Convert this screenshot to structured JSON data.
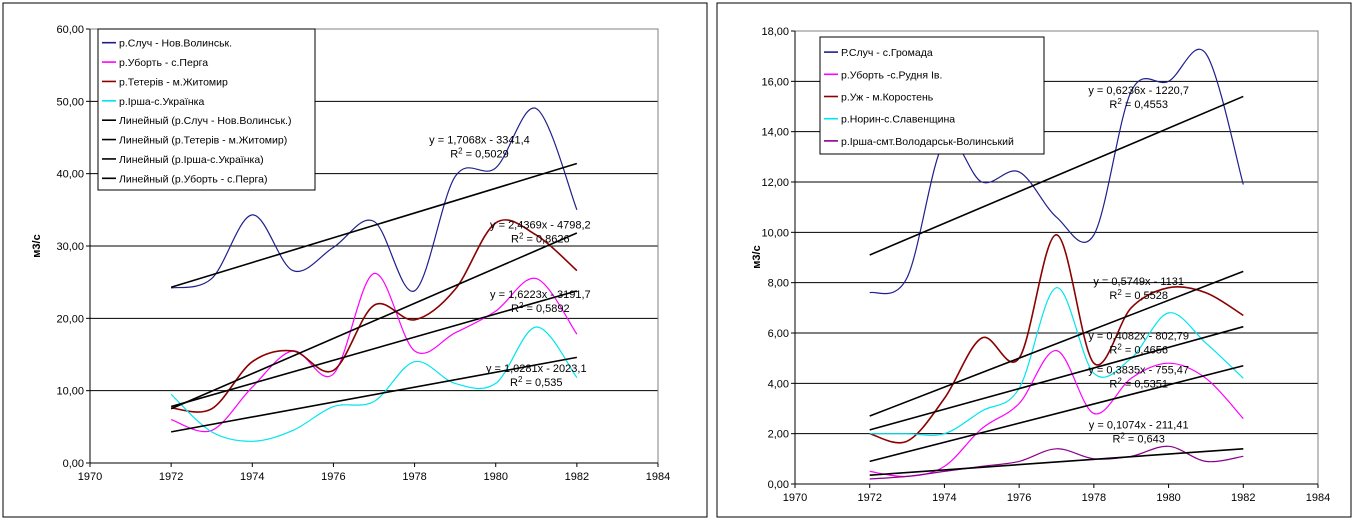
{
  "chart_data": [
    {
      "type": "line",
      "ylabel": "м3/с",
      "xlabel": "",
      "xlim": [
        1970,
        1984
      ],
      "ylim": [
        0,
        60
      ],
      "x_ticks": [
        "1970",
        "1972",
        "1974",
        "1976",
        "1978",
        "1980",
        "1982",
        "1984"
      ],
      "y_ticks": [
        "0,00",
        "10,00",
        "20,00",
        "30,00",
        "40,00",
        "50,00",
        "60,00"
      ],
      "grid": "horizontal",
      "legend_position": "top-left",
      "x": [
        1972,
        1973,
        1974,
        1975,
        1976,
        1977,
        1978,
        1979,
        1980,
        1981,
        1982
      ],
      "series": [
        {
          "name": "р.Случ - Нов.Волинськ.",
          "color": "#1f1f8c",
          "values": [
            24.2,
            25.5,
            34.3,
            26.6,
            29.8,
            33.4,
            23.8,
            39.6,
            40.8,
            49.0,
            35.0
          ]
        },
        {
          "name": "р.Уборть - с.Перга",
          "color": "#ff00ff",
          "values": [
            6.0,
            4.5,
            10.5,
            15.5,
            12.3,
            26.2,
            15.5,
            18.0,
            21.0,
            25.5,
            17.8
          ]
        },
        {
          "name": "р.Тетерів - м.Житомир",
          "color": "#8b0000",
          "values": [
            7.6,
            7.5,
            14.0,
            15.5,
            12.8,
            21.8,
            19.8,
            24.0,
            33.2,
            31.5,
            26.6
          ]
        },
        {
          "name": "р.Ірша-с.Українка",
          "color": "#00e5ee",
          "values": [
            9.5,
            4.3,
            3.0,
            4.5,
            7.8,
            8.5,
            14.0,
            11.0,
            11.0,
            18.8,
            11.8
          ]
        }
      ],
      "trendlines": [
        {
          "name": "Линейный (р.Случ - Нов.Волинськ.)",
          "from": 24.3,
          "to": 41.4,
          "equation": "y = 1,7068x - 3341,4",
          "r2": "R² = 0,5029",
          "label_anchor": [
            1979.6,
            44.2
          ]
        },
        {
          "name": "Линейный (р.Тетерів - м.Житомир)",
          "from": 7.5,
          "to": 31.8,
          "equation": "y = 2,4369x - 4798,2",
          "r2": "R² = 0,8626",
          "label_anchor": [
            1981.1,
            32.4
          ]
        },
        {
          "name": "Линейный (р.Ірша-с.Українка)",
          "from": 4.3,
          "to": 14.6,
          "equation": "y = 1,0281x - 2023,1",
          "r2": "R² = 0,535",
          "label_anchor": [
            1981.0,
            12.6
          ]
        },
        {
          "name": "Линейный (р.Уборть - с.Перга)",
          "from": 7.8,
          "to": 23.8,
          "equation": "y = 1,6223x - 3191,7",
          "r2": "R² = 0,5892",
          "label_anchor": [
            1981.1,
            22.8
          ]
        }
      ],
      "legend_items": [
        {
          "label": "р.Случ - Нов.Волинськ.",
          "color": "#1f1f8c"
        },
        {
          "label": "р.Уборть - с.Перга",
          "color": "#ff00ff"
        },
        {
          "label": "р.Тетерів - м.Житомир",
          "color": "#8b0000"
        },
        {
          "label": "р.Ірша-с.Українка",
          "color": "#00e5ee"
        },
        {
          "label": "Линейный (р.Случ - Нов.Волинськ.)",
          "color": "#000000"
        },
        {
          "label": "Линейный (р.Тетерів - м.Житомир)",
          "color": "#000000"
        },
        {
          "label": "Линейный (р.Ірша-с.Українка)",
          "color": "#000000"
        },
        {
          "label": "Линейный (р.Уборть - с.Перга)",
          "color": "#000000"
        }
      ]
    },
    {
      "type": "line",
      "ylabel": "м3/с",
      "xlabel": "",
      "xlim": [
        1970,
        1984
      ],
      "ylim": [
        0,
        18
      ],
      "x_ticks": [
        "1970",
        "1972",
        "1974",
        "1976",
        "1978",
        "1980",
        "1982",
        "1984"
      ],
      "y_ticks": [
        "0,00",
        "2,00",
        "4,00",
        "6,00",
        "8,00",
        "10,00",
        "12,00",
        "14,00",
        "16,00",
        "18,00"
      ],
      "grid": "horizontal",
      "legend_position": "top-left",
      "x": [
        1972,
        1973,
        1974,
        1975,
        1976,
        1977,
        1978,
        1979,
        1980,
        1981,
        1982
      ],
      "series": [
        {
          "name": "Р.Случ - с.Громада",
          "color": "#1f1f8c",
          "values": [
            7.6,
            8.2,
            13.6,
            12.0,
            12.4,
            10.6,
            9.9,
            15.6,
            16.0,
            17.1,
            11.9
          ]
        },
        {
          "name": "р.Уборть -с.Рудня Ів.",
          "color": "#ff00ff",
          "values": [
            0.5,
            0.3,
            0.7,
            2.2,
            3.2,
            5.3,
            2.8,
            4.2,
            4.8,
            4.2,
            2.6
          ]
        },
        {
          "name": "р.Уж - м.Коростень",
          "color": "#8b0000",
          "values": [
            2.0,
            1.7,
            3.4,
            5.8,
            5.0,
            9.9,
            4.8,
            7.0,
            7.8,
            7.6,
            6.7
          ]
        },
        {
          "name": "р.Норин-с.Славенщина",
          "color": "#00e5ee",
          "values": [
            2.0,
            2.0,
            2.0,
            2.9,
            3.8,
            7.8,
            4.4,
            5.0,
            6.8,
            5.6,
            4.2
          ]
        },
        {
          "name": "р.Ірша-смт.Володарськ-Волинський",
          "color": "#8b008b",
          "values": [
            0.2,
            0.3,
            0.5,
            0.7,
            0.9,
            1.4,
            1.0,
            1.1,
            1.5,
            0.9,
            1.1
          ]
        }
      ],
      "trendlines": [
        {
          "equation": "y = 0,6236x - 1220,7",
          "r2": "R² = 0,4553",
          "from": 9.1,
          "to": 15.4,
          "label_anchor": [
            1979.2,
            15.5
          ]
        },
        {
          "equation": "y = 0,5749x - 1131",
          "r2": "R² = 0,5528",
          "from": 2.7,
          "to": 8.45,
          "label_anchor": [
            1979.2,
            7.9
          ]
        },
        {
          "equation": "y = 0,4082x - 802,79",
          "r2": "R² = 0,4656",
          "from": 2.15,
          "to": 6.25,
          "label_anchor": [
            1979.2,
            5.75
          ]
        },
        {
          "equation": "y = 0,3835x - 755,47",
          "r2": "R² = 0,5351",
          "from": 0.9,
          "to": 4.7,
          "label_anchor": [
            1979.2,
            4.4
          ]
        },
        {
          "equation": "y = 0,1074x - 211,41",
          "r2": "R² = 0,643",
          "from": 0.35,
          "to": 1.4,
          "label_anchor": [
            1979.2,
            2.2
          ]
        }
      ],
      "legend_items": [
        {
          "label": "Р.Случ - с.Громада",
          "color": "#1f1f8c"
        },
        {
          "label": "р.Уборть -с.Рудня Ів.",
          "color": "#ff00ff"
        },
        {
          "label": "р.Уж - м.Коростень",
          "color": "#8b0000"
        },
        {
          "label": "р.Норин-с.Славенщина",
          "color": "#00e5ee"
        },
        {
          "label": "р.Ірша-смт.Володарськ-Волинський",
          "color": "#8b008b"
        }
      ]
    }
  ]
}
